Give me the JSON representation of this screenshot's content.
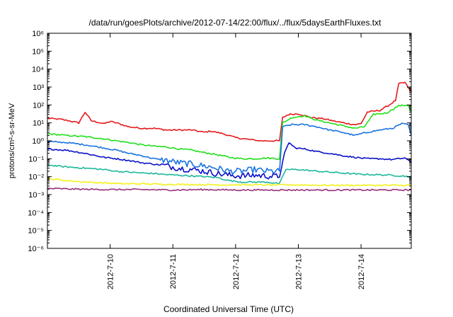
{
  "chart_data": {
    "type": "line",
    "title": "/data/run/goesPlots/archive/2012-07-14/22:00/flux/../flux/5daysEarthFluxes.txt",
    "xlabel": "Coordinated Universal Time (UTC)",
    "ylabel": "protons/cm²-s-sr-MeV",
    "yscale": "log",
    "xlim": [
      0,
      5.8
    ],
    "ylim_exp": [
      -6,
      6
    ],
    "x_ticks": [
      {
        "x": 1,
        "label": "2012-7-10"
      },
      {
        "x": 2,
        "label": "2012-7-11"
      },
      {
        "x": 3,
        "label": "2012-7-12"
      },
      {
        "x": 4,
        "label": "2012-7-13"
      },
      {
        "x": 5,
        "label": "2012-7-14"
      }
    ],
    "y_ticks": [
      {
        "exp": 6,
        "label": "10⁶"
      },
      {
        "exp": 5,
        "label": "10⁵"
      },
      {
        "exp": 4,
        "label": "10⁴"
      },
      {
        "exp": 3,
        "label": "10³"
      },
      {
        "exp": 2,
        "label": "10²"
      },
      {
        "exp": 1,
        "label": "10¹"
      },
      {
        "exp": 0,
        "label": "10⁰"
      },
      {
        "exp": -1,
        "label": "10⁻¹"
      },
      {
        "exp": -2,
        "label": "10⁻²"
      },
      {
        "exp": -3,
        "label": "10⁻³"
      },
      {
        "exp": -4,
        "label": "10⁻⁴"
      },
      {
        "exp": -5,
        "label": "10⁻⁵"
      },
      {
        "exp": -6,
        "label": "10⁻⁶"
      }
    ],
    "grid": false,
    "series": [
      {
        "color": "#e41a1c",
        "points": [
          [
            0,
            18
          ],
          [
            0.2,
            16
          ],
          [
            0.35,
            13
          ],
          [
            0.5,
            10
          ],
          [
            0.6,
            40
          ],
          [
            0.7,
            13
          ],
          [
            0.8,
            11
          ],
          [
            0.9,
            9
          ],
          [
            1.0,
            12
          ],
          [
            1.1,
            10
          ],
          [
            1.3,
            6
          ],
          [
            1.5,
            5
          ],
          [
            1.7,
            5
          ],
          [
            1.9,
            4
          ],
          [
            2.1,
            4
          ],
          [
            2.3,
            4
          ],
          [
            2.5,
            3
          ],
          [
            2.6,
            3.5
          ],
          [
            2.8,
            2.5
          ],
          [
            3.0,
            1.5
          ],
          [
            3.2,
            1.2
          ],
          [
            3.4,
            1.0
          ],
          [
            3.6,
            1.0
          ],
          [
            3.7,
            1.0
          ],
          [
            3.75,
            20
          ],
          [
            3.85,
            30
          ],
          [
            4.0,
            32
          ],
          [
            4.2,
            20
          ],
          [
            4.4,
            17
          ],
          [
            4.6,
            12
          ],
          [
            4.8,
            9
          ],
          [
            4.9,
            8
          ],
          [
            5.0,
            9
          ],
          [
            5.1,
            40
          ],
          [
            5.3,
            50
          ],
          [
            5.45,
            100
          ],
          [
            5.55,
            180
          ],
          [
            5.6,
            1500
          ],
          [
            5.7,
            1800
          ],
          [
            5.8,
            500
          ]
        ]
      },
      {
        "color": "#22e01a",
        "points": [
          [
            0,
            2.5
          ],
          [
            0.3,
            2
          ],
          [
            0.6,
            1.7
          ],
          [
            0.9,
            1.3
          ],
          [
            1.1,
            1.0
          ],
          [
            1.3,
            0.8
          ],
          [
            1.5,
            0.6
          ],
          [
            1.7,
            0.5
          ],
          [
            1.9,
            0.45
          ],
          [
            2.1,
            0.35
          ],
          [
            2.3,
            0.3
          ],
          [
            2.5,
            0.22
          ],
          [
            2.7,
            0.17
          ],
          [
            2.9,
            0.12
          ],
          [
            3.1,
            0.1
          ],
          [
            3.3,
            0.1
          ],
          [
            3.5,
            0.11
          ],
          [
            3.7,
            0.1
          ],
          [
            3.75,
            10
          ],
          [
            3.9,
            20
          ],
          [
            4.1,
            25
          ],
          [
            4.3,
            14
          ],
          [
            4.5,
            10
          ],
          [
            4.7,
            7
          ],
          [
            4.9,
            5
          ],
          [
            5.05,
            6
          ],
          [
            5.2,
            30
          ],
          [
            5.4,
            35
          ],
          [
            5.6,
            90
          ],
          [
            5.75,
            100
          ],
          [
            5.8,
            40
          ]
        ]
      },
      {
        "color": "#1a73e0",
        "points": [
          [
            0,
            0.9
          ],
          [
            0.3,
            0.8
          ],
          [
            0.6,
            0.6
          ],
          [
            0.9,
            0.4
          ],
          [
            1.1,
            0.3
          ],
          [
            1.3,
            0.2
          ],
          [
            1.5,
            0.15
          ],
          [
            1.7,
            0.1
          ],
          [
            1.9,
            0.08
          ],
          [
            2.1,
            0.06
          ],
          [
            2.3,
            0.05
          ],
          [
            2.5,
            0.04
          ],
          [
            2.7,
            0.03
          ],
          [
            2.9,
            0.02
          ],
          [
            3.1,
            0.02
          ],
          [
            3.3,
            0.025
          ],
          [
            3.5,
            0.02
          ],
          [
            3.7,
            0.02
          ],
          [
            3.75,
            6
          ],
          [
            3.9,
            8
          ],
          [
            4.1,
            8
          ],
          [
            4.3,
            6
          ],
          [
            4.5,
            4
          ],
          [
            4.7,
            3
          ],
          [
            4.9,
            2
          ],
          [
            5.1,
            3
          ],
          [
            5.3,
            4
          ],
          [
            5.5,
            5
          ],
          [
            5.65,
            9
          ],
          [
            5.75,
            8
          ],
          [
            5.8,
            2
          ]
        ]
      },
      {
        "color": "#0a10c8",
        "points": [
          [
            0,
            0.35
          ],
          [
            0.3,
            0.3
          ],
          [
            0.6,
            0.2
          ],
          [
            0.9,
            0.12
          ],
          [
            1.1,
            0.1
          ],
          [
            1.3,
            0.08
          ],
          [
            1.5,
            0.06
          ],
          [
            1.7,
            0.05
          ],
          [
            1.9,
            0.04
          ],
          [
            2.1,
            0.03
          ],
          [
            2.3,
            0.025
          ],
          [
            2.5,
            0.02
          ],
          [
            2.7,
            0.015
          ],
          [
            2.9,
            0.012
          ],
          [
            3.1,
            0.011
          ],
          [
            3.3,
            0.012
          ],
          [
            3.5,
            0.011
          ],
          [
            3.7,
            0.01
          ],
          [
            3.78,
            0.2
          ],
          [
            3.85,
            0.8
          ],
          [
            3.95,
            0.4
          ],
          [
            4.1,
            0.35
          ],
          [
            4.3,
            0.25
          ],
          [
            4.5,
            0.2
          ],
          [
            4.7,
            0.15
          ],
          [
            4.9,
            0.12
          ],
          [
            5.1,
            0.1
          ],
          [
            5.3,
            0.1
          ],
          [
            5.5,
            0.09
          ],
          [
            5.7,
            0.11
          ],
          [
            5.8,
            0.06
          ]
        ]
      },
      {
        "color": "#1ab89a",
        "points": [
          [
            0,
            0.045
          ],
          [
            0.3,
            0.035
          ],
          [
            0.6,
            0.03
          ],
          [
            0.9,
            0.025
          ],
          [
            1.1,
            0.02
          ],
          [
            1.3,
            0.018
          ],
          [
            1.5,
            0.016
          ],
          [
            1.7,
            0.015
          ],
          [
            1.9,
            0.013
          ],
          [
            2.1,
            0.012
          ],
          [
            2.3,
            0.011
          ],
          [
            2.5,
            0.01
          ],
          [
            2.7,
            0.009
          ],
          [
            2.9,
            0.006
          ],
          [
            3.1,
            0.005
          ],
          [
            3.3,
            0.005
          ],
          [
            3.5,
            0.005
          ],
          [
            3.7,
            0.004
          ],
          [
            3.8,
            0.025
          ],
          [
            4.0,
            0.025
          ],
          [
            4.3,
            0.02
          ],
          [
            4.6,
            0.017
          ],
          [
            4.9,
            0.014
          ],
          [
            5.2,
            0.013
          ],
          [
            5.5,
            0.012
          ],
          [
            5.8,
            0.01
          ]
        ]
      },
      {
        "color": "#f2f21a",
        "points": [
          [
            0,
            0.008
          ],
          [
            0.3,
            0.006
          ],
          [
            0.6,
            0.005
          ],
          [
            0.9,
            0.0045
          ],
          [
            1.2,
            0.004
          ],
          [
            1.5,
            0.004
          ],
          [
            1.8,
            0.0038
          ],
          [
            2.1,
            0.0037
          ],
          [
            2.4,
            0.0036
          ],
          [
            2.7,
            0.0035
          ],
          [
            3.0,
            0.0035
          ],
          [
            3.3,
            0.0035
          ],
          [
            3.6,
            0.0034
          ],
          [
            3.9,
            0.0035
          ],
          [
            4.2,
            0.0034
          ],
          [
            4.5,
            0.0033
          ],
          [
            4.8,
            0.0033
          ],
          [
            5.1,
            0.0033
          ],
          [
            5.4,
            0.0033
          ],
          [
            5.8,
            0.0033
          ]
        ]
      },
      {
        "color": "#96307a",
        "points": [
          [
            0,
            0.0022
          ],
          [
            0.5,
            0.002
          ],
          [
            1.0,
            0.0019
          ],
          [
            1.5,
            0.0019
          ],
          [
            2.0,
            0.0018
          ],
          [
            2.5,
            0.0019
          ],
          [
            3.0,
            0.0018
          ],
          [
            3.5,
            0.0018
          ],
          [
            4.0,
            0.0018
          ],
          [
            4.5,
            0.0018
          ],
          [
            5.0,
            0.0018
          ],
          [
            5.5,
            0.0018
          ],
          [
            5.8,
            0.0018
          ]
        ]
      }
    ]
  }
}
